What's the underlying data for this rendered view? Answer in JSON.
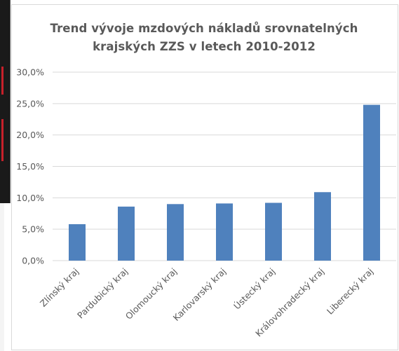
{
  "chart_data": {
    "type": "bar",
    "title": "Trend vývoje mzdových nákladů srovnatelných krajských ZZS v letech 2010-2012",
    "title_lines": [
      "Trend vývoje mzdových nákladů srovnatelných",
      "krajských ZZS v letech 2010-2012"
    ],
    "categories": [
      "Zlínský kraj",
      "Pardubický kraj",
      "Olomoucký kraj",
      "Karlovarský kraj",
      "Ústecký kraj",
      "Královohradecký kraj",
      "Liberecký kraj"
    ],
    "values": [
      5.8,
      8.6,
      9.0,
      9.1,
      9.2,
      10.9,
      24.8
    ],
    "ylim": [
      0,
      30
    ],
    "yticks": [
      0,
      5,
      10,
      15,
      20,
      25,
      30
    ],
    "ytick_labels": [
      "0,0%",
      "5,0%",
      "10,0%",
      "15,0%",
      "20,0%",
      "25,0%",
      "30,0%"
    ],
    "xlabel": "",
    "ylabel": "",
    "grid": true,
    "legend": "none",
    "bar_color": "#4f81bd",
    "grid_color": "#d9d9d9"
  }
}
